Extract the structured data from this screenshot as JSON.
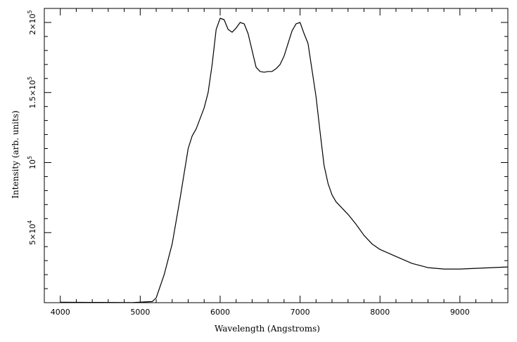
{
  "chart_data": {
    "type": "line",
    "xlabel": "Wavelength (Angstroms)",
    "ylabel": "Intensity (arb. units)",
    "xlim": [
      3800,
      9600
    ],
    "ylim": [
      0,
      210000
    ],
    "grid": false,
    "x_ticks": [
      {
        "value": 4000,
        "label": "4000"
      },
      {
        "value": 5000,
        "label": "5000"
      },
      {
        "value": 6000,
        "label": "6000"
      },
      {
        "value": 7000,
        "label": "7000"
      },
      {
        "value": 8000,
        "label": "8000"
      },
      {
        "value": 9000,
        "label": "9000"
      }
    ],
    "y_ticks": [
      {
        "value": 50000,
        "mant": "5×10",
        "exp": "4"
      },
      {
        "value": 100000,
        "mant": "10",
        "exp": "5"
      },
      {
        "value": 150000,
        "mant": "1.5×10",
        "exp": "5"
      },
      {
        "value": 200000,
        "mant": "2×10",
        "exp": "5"
      }
    ],
    "series": [
      {
        "x": [
          4000,
          4500,
          4900,
          5150,
          5200,
          5300,
          5400,
          5500,
          5600,
          5650,
          5700,
          5800,
          5850,
          5900,
          5950,
          6000,
          6050,
          6100,
          6150,
          6200,
          6250,
          6300,
          6350,
          6400,
          6450,
          6500,
          6550,
          6600,
          6650,
          6700,
          6750,
          6800,
          6850,
          6900,
          6950,
          7000,
          7050,
          7100,
          7150,
          7200,
          7250,
          7300,
          7350,
          7400,
          7450,
          7500,
          7600,
          7700,
          7800,
          7900,
          8000,
          8200,
          8400,
          8600,
          8800,
          9000,
          9200,
          9400,
          9600
        ],
        "y": [
          300,
          200,
          100,
          800,
          3500,
          20000,
          42000,
          75000,
          110000,
          119000,
          124000,
          139000,
          150000,
          170000,
          195000,
          203000,
          202000,
          195000,
          193000,
          196000,
          200000,
          199000,
          192000,
          180000,
          168000,
          165000,
          164500,
          165000,
          165000,
          167000,
          170000,
          176000,
          185000,
          194000,
          199000,
          200000,
          192000,
          185000,
          166000,
          147000,
          122000,
          98000,
          85000,
          77000,
          72000,
          69000,
          63000,
          56000,
          48000,
          42000,
          38000,
          33000,
          28000,
          25000,
          24000,
          24000,
          24500,
          25000,
          25500
        ]
      }
    ]
  }
}
